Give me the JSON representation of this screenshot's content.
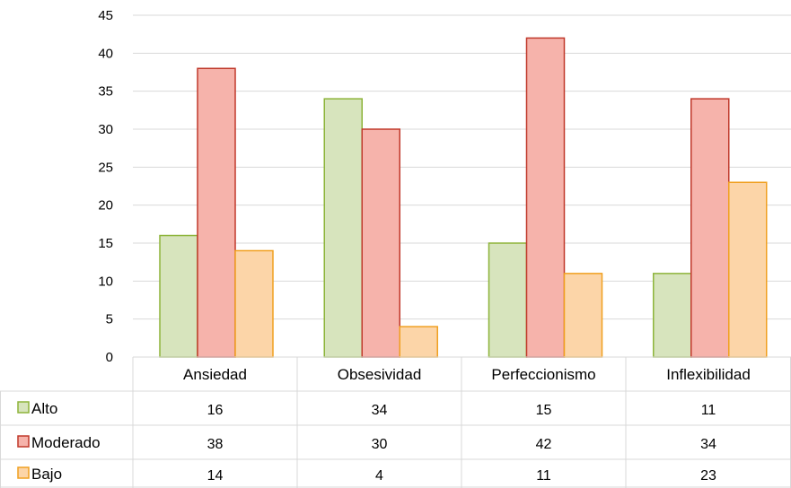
{
  "chart_data": {
    "type": "bar",
    "categories": [
      "Ansiedad",
      "Obsesividad",
      "Perfeccionismo",
      "Inflexibilidad"
    ],
    "series": [
      {
        "name": "Alto",
        "values": [
          16,
          34,
          15,
          11
        ],
        "color": "#d7e4bd",
        "stroke": "#8db43a"
      },
      {
        "name": "Moderado",
        "values": [
          38,
          30,
          42,
          34
        ],
        "color": "#f6b3ab",
        "stroke": "#c0392b"
      },
      {
        "name": "Bajo",
        "values": [
          14,
          4,
          11,
          23
        ],
        "color": "#fcd5a8",
        "stroke": "#f0a020"
      }
    ],
    "ylim": [
      0,
      45
    ],
    "yticks": [
      "0",
      "5",
      "10",
      "15",
      "20",
      "25",
      "30",
      "35",
      "40",
      "45"
    ],
    "grid": true,
    "legend": "data-table",
    "title": "",
    "xlabel": "",
    "ylabel": ""
  }
}
